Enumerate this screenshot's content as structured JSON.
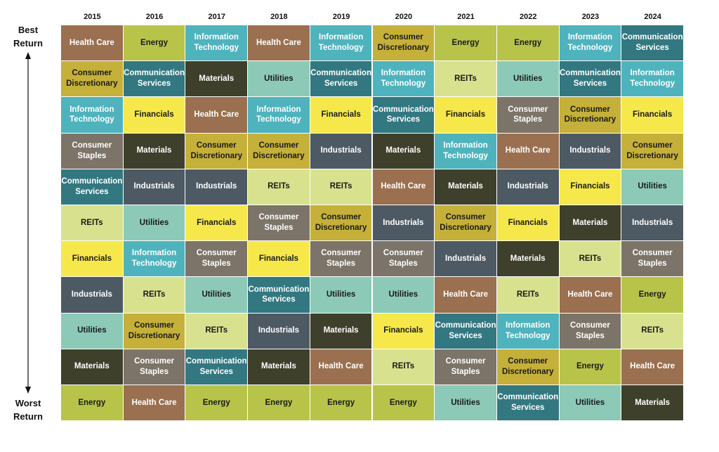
{
  "top_label": "Best\nReturn",
  "bottom_label": "Worst\nReturn",
  "colors": {
    "Health Care": {
      "bg": "#9a7050",
      "fg": "#ffffff"
    },
    "Energy": {
      "bg": "#b8c449",
      "fg": "#1a1a1a"
    },
    "Information Technology": {
      "bg": "#4fb3bd",
      "fg": "#ffffff"
    },
    "Consumer Discretionary": {
      "bg": "#c5b03a",
      "fg": "#1a1a1a"
    },
    "Communication Services": {
      "bg": "#337880",
      "fg": "#ffffff"
    },
    "Materials": {
      "bg": "#3f402b",
      "fg": "#ffffff"
    },
    "Utilities": {
      "bg": "#8ccab7",
      "fg": "#1a1a1a"
    },
    "REITs": {
      "bg": "#d8e28e",
      "fg": "#1a1a1a"
    },
    "Financials": {
      "bg": "#f6e84a",
      "fg": "#1a1a1a"
    },
    "Consumer Staples": {
      "bg": "#7c7468",
      "fg": "#ffffff"
    },
    "Industrials": {
      "bg": "#4d5a64",
      "fg": "#ffffff"
    }
  },
  "display_labels": {
    "Information Technology": "Information\nTechnology",
    "Consumer Discretionary": "Consumer\nDiscretionary",
    "Communication Services": "Communication\nServices",
    "Consumer Staples": "Consumer\nStaples"
  },
  "chart_data": {
    "type": "table",
    "order": "best to worst return",
    "columns": [
      {
        "year": "2015",
        "ranking": [
          "Health Care",
          "Consumer Discretionary",
          "Information Technology",
          "Consumer Staples",
          "Communication Services",
          "REITs",
          "Financials",
          "Industrials",
          "Utilities",
          "Materials",
          "Energy"
        ]
      },
      {
        "year": "2016",
        "ranking": [
          "Energy",
          "Communication Services",
          "Financials",
          "Materials",
          "Industrials",
          "Utilities",
          "Information Technology",
          "REITs",
          "Consumer Discretionary",
          "Consumer Staples",
          "Health Care"
        ]
      },
      {
        "year": "2017",
        "ranking": [
          "Information Technology",
          "Materials",
          "Health Care",
          "Consumer Discretionary",
          "Industrials",
          "Financials",
          "Consumer Staples",
          "Utilities",
          "REITs",
          "Communication Services",
          "Energy"
        ]
      },
      {
        "year": "2018",
        "ranking": [
          "Health Care",
          "Utilities",
          "Information Technology",
          "Consumer Discretionary",
          "REITs",
          "Consumer Staples",
          "Financials",
          "Communication Services",
          "Industrials",
          "Materials",
          "Energy"
        ]
      },
      {
        "year": "2019",
        "ranking": [
          "Information Technology",
          "Communication Services",
          "Financials",
          "Industrials",
          "REITs",
          "Consumer Discretionary",
          "Consumer Staples",
          "Utilities",
          "Materials",
          "Health Care",
          "Energy"
        ]
      },
      {
        "year": "2020",
        "ranking": [
          "Consumer Discretionary",
          "Information Technology",
          "Communication Services",
          "Materials",
          "Health Care",
          "Industrials",
          "Consumer Staples",
          "Utilities",
          "Financials",
          "REITs",
          "Energy"
        ]
      },
      {
        "year": "2021",
        "ranking": [
          "Energy",
          "REITs",
          "Financials",
          "Information Technology",
          "Materials",
          "Consumer Discretionary",
          "Industrials",
          "Health Care",
          "Communication Services",
          "Consumer Staples",
          "Utilities"
        ]
      },
      {
        "year": "2022",
        "ranking": [
          "Energy",
          "Utilities",
          "Consumer Staples",
          "Health Care",
          "Industrials",
          "Financials",
          "Materials",
          "REITs",
          "Information Technology",
          "Consumer Discretionary",
          "Communication Services"
        ]
      },
      {
        "year": "2023",
        "ranking": [
          "Information Technology",
          "Communication Services",
          "Consumer Discretionary",
          "Industrials",
          "Financials",
          "Materials",
          "REITs",
          "Health Care",
          "Consumer Staples",
          "Energy",
          "Utilities"
        ]
      },
      {
        "year": "2024",
        "ranking": [
          "Communication Services",
          "Information Technology",
          "Financials",
          "Consumer Discretionary",
          "Utilities",
          "Industrials",
          "Consumer Staples",
          "Energy",
          "REITs",
          "Health Care",
          "Materials"
        ]
      }
    ]
  }
}
